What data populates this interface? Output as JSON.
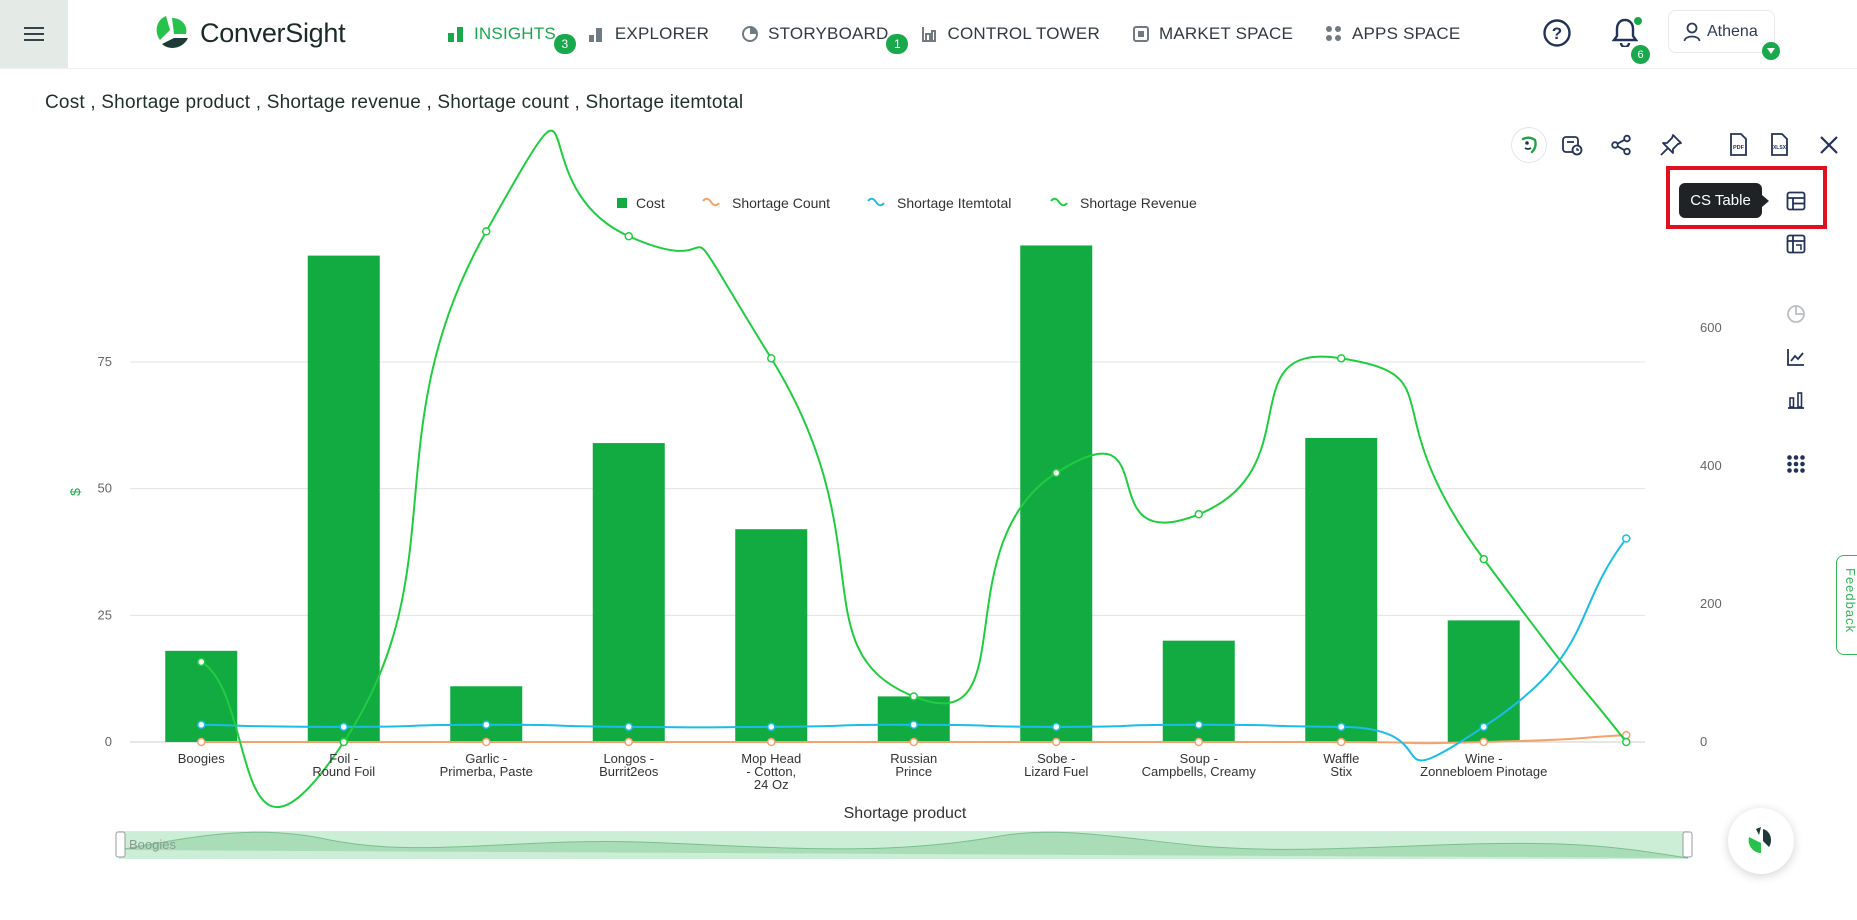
{
  "app": {
    "brand": "ConverSight",
    "nav": [
      {
        "label": "INSIGHTS",
        "badge": "3",
        "active": true,
        "icon": "bar-chart-icon"
      },
      {
        "label": "EXPLORER",
        "badge": "",
        "active": false,
        "icon": "explorer-icon"
      },
      {
        "label": "STORYBOARD",
        "badge": "1",
        "active": false,
        "icon": "storyboard-icon"
      },
      {
        "label": "CONTROL TOWER",
        "badge": "",
        "active": false,
        "icon": "control-tower-icon"
      },
      {
        "label": "MARKET SPACE",
        "badge": "",
        "active": false,
        "icon": "market-space-icon"
      },
      {
        "label": "APPS SPACE",
        "badge": "",
        "active": false,
        "icon": "apps-space-icon"
      }
    ],
    "notifications_count": "6",
    "user_name": "Athena"
  },
  "page": {
    "title": "Cost , Shortage product , Shortage revenue , Shortage count , Shortage itemtotal",
    "tooltip": "CS Table",
    "feedback": "Feedback"
  },
  "colors": {
    "accent": "#1aa84c",
    "cost": "#11ab41",
    "shortage_count": "#f4a26c",
    "shortage_itemtotal": "#1bbde8",
    "shortage_revenue": "#22cc40",
    "highlight": "#e0101e"
  },
  "chart_data": {
    "type": "bar",
    "title": "",
    "xlabel": "Shortage product",
    "ylabel": "$",
    "ylim": [
      0,
      100
    ],
    "y2lim": [
      0,
      800
    ],
    "yticks": [
      0,
      25,
      50,
      75
    ],
    "y2ticks": [
      0,
      200,
      400,
      600
    ],
    "grid": true,
    "legend_position": "top-center",
    "categories": [
      "Boogies",
      "Foil - Round Foil",
      "Garlic - Primerba, Paste",
      "Longos - Burrit2eos",
      "Mop Head - Cotton, 24 Oz",
      "Russian Prince",
      "Sobe - Lizard Fuel",
      "Soup - Campbells, Creamy",
      "Waffle Stix",
      "Wine - Zonnebloem Pinotage",
      ""
    ],
    "category_labels": [
      [
        "Boogies"
      ],
      [
        "Foil -",
        "Round Foil"
      ],
      [
        "Garlic -",
        "Primerba, Paste"
      ],
      [
        "Longos -",
        "Burrit2eos"
      ],
      [
        "Mop Head",
        "- Cotton,",
        "24 Oz"
      ],
      [
        "Russian",
        "Prince"
      ],
      [
        "Sobe -",
        "Lizard Fuel"
      ],
      [
        "Soup -",
        "Campbells, Creamy"
      ],
      [
        "Waffle",
        "Stix"
      ],
      [
        "Wine -",
        "Zonnebloem Pinotage"
      ],
      [
        ""
      ]
    ],
    "series": [
      {
        "name": "Cost",
        "type": "bar",
        "axis": "left",
        "values": [
          18,
          96,
          11,
          59,
          42,
          9,
          98,
          20,
          60,
          24,
          null
        ]
      },
      {
        "name": "Shortage Count",
        "type": "line",
        "axis": "right",
        "values": [
          0,
          0,
          0,
          0,
          0,
          0,
          0,
          0,
          0,
          0,
          10
        ]
      },
      {
        "name": "Shortage Itemtotal",
        "type": "line",
        "axis": "right",
        "values": [
          25,
          22,
          25,
          22,
          22,
          25,
          22,
          25,
          22,
          22,
          295
        ]
      },
      {
        "name": "Shortage Revenue",
        "type": "line",
        "axis": "right",
        "values": [
          116,
          0,
          740,
          733,
          556,
          66,
          390,
          330,
          556,
          265,
          0
        ]
      }
    ],
    "zoom_slider": {
      "start_label": "Boogies"
    }
  }
}
